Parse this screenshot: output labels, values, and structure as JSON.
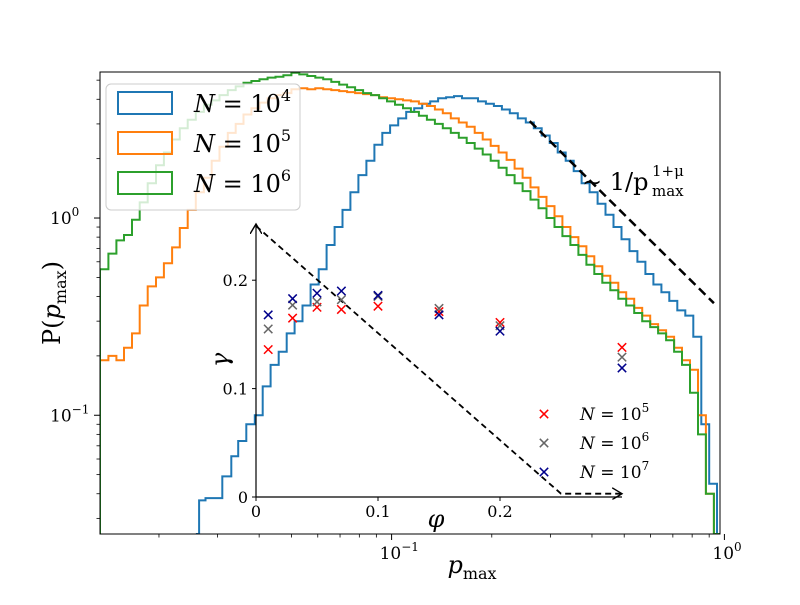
{
  "chart_data": [
    {
      "type": "step-histogram",
      "title": "",
      "xlabel": "p_max",
      "ylabel": "P(p_max)",
      "xscale": "log",
      "yscale": "log",
      "xlim": [
        0.0133,
        0.97
      ],
      "ylim": [
        0.025,
        5.5
      ],
      "xticks": [
        {
          "value": 0.1,
          "label": "10",
          "exp": "−1"
        },
        {
          "value": 1,
          "label": "10",
          "exp": "0"
        }
      ],
      "yticks": [
        {
          "value": 0.1,
          "label": "10",
          "exp": "−1"
        },
        {
          "value": 1,
          "label": "10",
          "exp": "0"
        }
      ],
      "legend_position": "top-left",
      "series": [
        {
          "name": "N = 10^4",
          "legend_base": "N = 10",
          "legend_exp": "4",
          "color": "#1f77b4",
          "points": [
            [
              0.026,
              0.025
            ],
            [
              0.0264,
              0.037
            ],
            [
              0.0276,
              0.038
            ],
            [
              0.0293,
              0.038
            ],
            [
              0.031,
              0.049
            ],
            [
              0.033,
              0.062
            ],
            [
              0.0346,
              0.074
            ],
            [
              0.0366,
              0.09
            ],
            [
              0.0388,
              0.1
            ],
            [
              0.041,
              0.14
            ],
            [
              0.0433,
              0.18
            ],
            [
              0.0458,
              0.21
            ],
            [
              0.0484,
              0.26
            ],
            [
              0.0511,
              0.3
            ],
            [
              0.054,
              0.36
            ],
            [
              0.0571,
              0.46
            ],
            [
              0.0604,
              0.55
            ],
            [
              0.0638,
              0.73
            ],
            [
              0.0674,
              0.9
            ],
            [
              0.0712,
              1.1
            ],
            [
              0.0752,
              1.35
            ],
            [
              0.0795,
              1.65
            ],
            [
              0.084,
              1.95
            ],
            [
              0.0888,
              2.35
            ],
            [
              0.0938,
              2.7
            ],
            [
              0.099,
              2.95
            ],
            [
              0.1047,
              3.2
            ],
            [
              0.1106,
              3.45
            ],
            [
              0.1169,
              3.6
            ],
            [
              0.1236,
              3.8
            ],
            [
              0.1306,
              3.9
            ],
            [
              0.138,
              4.05
            ],
            [
              0.1458,
              4.1
            ],
            [
              0.154,
              4.15
            ],
            [
              0.1628,
              4.05
            ],
            [
              0.172,
              4.05
            ],
            [
              0.1818,
              3.9
            ],
            [
              0.192,
              3.8
            ],
            [
              0.2029,
              3.7
            ],
            [
              0.2145,
              3.55
            ],
            [
              0.2266,
              3.4
            ],
            [
              0.2395,
              3.2
            ],
            [
              0.2531,
              3.05
            ],
            [
              0.2674,
              2.85
            ],
            [
              0.2826,
              2.62
            ],
            [
              0.2986,
              2.4
            ],
            [
              0.3156,
              2.15
            ],
            [
              0.3335,
              1.95
            ],
            [
              0.3524,
              1.73
            ],
            [
              0.3724,
              1.5
            ],
            [
              0.3935,
              1.35
            ],
            [
              0.4158,
              1.18
            ],
            [
              0.4394,
              1.04
            ],
            [
              0.4643,
              0.9
            ],
            [
              0.4906,
              0.78
            ],
            [
              0.5185,
              0.68
            ],
            [
              0.5479,
              0.6
            ],
            [
              0.579,
              0.52
            ],
            [
              0.6118,
              0.46
            ],
            [
              0.6465,
              0.42
            ],
            [
              0.6832,
              0.38
            ],
            [
              0.722,
              0.34
            ],
            [
              0.763,
              0.32
            ],
            [
              0.8062,
              0.25
            ],
            [
              0.852,
              0.09
            ],
            [
              0.9,
              0.045
            ],
            [
              0.95,
              0.025
            ]
          ]
        },
        {
          "name": "N = 10^5",
          "legend_base": "N = 10",
          "legend_exp": "5",
          "color": "#ff7f0e",
          "points": [
            [
              0.0133,
              0.19
            ],
            [
              0.0141,
              0.2
            ],
            [
              0.0149,
              0.19
            ],
            [
              0.0157,
              0.22
            ],
            [
              0.0166,
              0.26
            ],
            [
              0.0175,
              0.36
            ],
            [
              0.0185,
              0.45
            ],
            [
              0.0196,
              0.5
            ],
            [
              0.0207,
              0.59
            ],
            [
              0.0219,
              0.71
            ],
            [
              0.0231,
              0.89
            ],
            [
              0.0244,
              1.1
            ],
            [
              0.0258,
              1.35
            ],
            [
              0.0273,
              1.6
            ],
            [
              0.0288,
              1.95
            ],
            [
              0.0304,
              2.3
            ],
            [
              0.0322,
              2.7
            ],
            [
              0.034,
              3.0
            ],
            [
              0.0359,
              3.35
            ],
            [
              0.0379,
              3.6
            ],
            [
              0.0401,
              3.85
            ],
            [
              0.0424,
              4.05
            ],
            [
              0.0448,
              4.2
            ],
            [
              0.0473,
              4.3
            ],
            [
              0.05,
              4.5
            ],
            [
              0.0528,
              4.55
            ],
            [
              0.0558,
              4.5
            ],
            [
              0.059,
              4.55
            ],
            [
              0.0623,
              4.5
            ],
            [
              0.0659,
              4.45
            ],
            [
              0.0696,
              4.4
            ],
            [
              0.0735,
              4.35
            ],
            [
              0.0777,
              4.3
            ],
            [
              0.0821,
              4.25
            ],
            [
              0.0868,
              4.2
            ],
            [
              0.0917,
              4.1
            ],
            [
              0.0969,
              4.05
            ],
            [
              0.1024,
              4.0
            ],
            [
              0.1082,
              3.95
            ],
            [
              0.1143,
              3.9
            ],
            [
              0.1208,
              3.8
            ],
            [
              0.1277,
              3.7
            ],
            [
              0.1349,
              3.55
            ],
            [
              0.1425,
              3.4
            ],
            [
              0.1506,
              3.2
            ],
            [
              0.1592,
              3.05
            ],
            [
              0.1682,
              2.9
            ],
            [
              0.1777,
              2.7
            ],
            [
              0.1878,
              2.5
            ],
            [
              0.1985,
              2.32
            ],
            [
              0.2097,
              2.15
            ],
            [
              0.2216,
              1.97
            ],
            [
              0.2342,
              1.78
            ],
            [
              0.2475,
              1.6
            ],
            [
              0.2615,
              1.43
            ],
            [
              0.2763,
              1.28
            ],
            [
              0.292,
              1.15
            ],
            [
              0.3086,
              1.02
            ],
            [
              0.3261,
              0.9
            ],
            [
              0.3446,
              0.8
            ],
            [
              0.3641,
              0.72
            ],
            [
              0.3848,
              0.64
            ],
            [
              0.4066,
              0.57
            ],
            [
              0.4297,
              0.51
            ],
            [
              0.454,
              0.47
            ],
            [
              0.4798,
              0.42
            ],
            [
              0.507,
              0.39
            ],
            [
              0.5358,
              0.35
            ],
            [
              0.5662,
              0.32
            ],
            [
              0.5983,
              0.29
            ],
            [
              0.6322,
              0.27
            ],
            [
              0.6681,
              0.25
            ],
            [
              0.706,
              0.22
            ],
            [
              0.746,
              0.19
            ],
            [
              0.7883,
              0.17
            ],
            [
              0.833,
              0.1
            ],
            [
              0.88,
              0.04
            ],
            [
              0.93,
              0.025
            ]
          ]
        },
        {
          "name": "N = 10^6",
          "legend_base": "N = 10",
          "legend_exp": "6",
          "color": "#2ca02c",
          "points": [
            [
              0.0133,
              0.55
            ],
            [
              0.0141,
              0.66
            ],
            [
              0.0149,
              0.77
            ],
            [
              0.0157,
              0.82
            ],
            [
              0.0166,
              0.98
            ],
            [
              0.0175,
              1.2
            ],
            [
              0.0185,
              1.5
            ],
            [
              0.0196,
              1.85
            ],
            [
              0.0207,
              2.15
            ],
            [
              0.0219,
              2.5
            ],
            [
              0.0231,
              2.85
            ],
            [
              0.0244,
              3.15
            ],
            [
              0.0258,
              3.45
            ],
            [
              0.0273,
              3.75
            ],
            [
              0.0288,
              3.95
            ],
            [
              0.0304,
              4.2
            ],
            [
              0.0322,
              4.45
            ],
            [
              0.034,
              4.65
            ],
            [
              0.0359,
              4.85
            ],
            [
              0.0379,
              4.95
            ],
            [
              0.0401,
              5.05
            ],
            [
              0.0424,
              5.15
            ],
            [
              0.0448,
              5.2
            ],
            [
              0.0473,
              5.3
            ],
            [
              0.05,
              5.45
            ],
            [
              0.0528,
              5.35
            ],
            [
              0.0558,
              5.25
            ],
            [
              0.059,
              5.15
            ],
            [
              0.0623,
              5.05
            ],
            [
              0.0659,
              4.9
            ],
            [
              0.0696,
              4.75
            ],
            [
              0.0735,
              4.6
            ],
            [
              0.0777,
              4.45
            ],
            [
              0.0821,
              4.3
            ],
            [
              0.0868,
              4.2
            ],
            [
              0.0917,
              4.05
            ],
            [
              0.0969,
              3.9
            ],
            [
              0.1024,
              3.75
            ],
            [
              0.1082,
              3.6
            ],
            [
              0.1143,
              3.45
            ],
            [
              0.1208,
              3.3
            ],
            [
              0.1277,
              3.15
            ],
            [
              0.1349,
              3.0
            ],
            [
              0.1425,
              2.85
            ],
            [
              0.1506,
              2.7
            ],
            [
              0.1592,
              2.55
            ],
            [
              0.1682,
              2.4
            ],
            [
              0.1777,
              2.25
            ],
            [
              0.1878,
              2.1
            ],
            [
              0.1985,
              1.95
            ],
            [
              0.2097,
              1.8
            ],
            [
              0.2216,
              1.65
            ],
            [
              0.2342,
              1.5
            ],
            [
              0.2475,
              1.37
            ],
            [
              0.2615,
              1.24
            ],
            [
              0.2763,
              1.12
            ],
            [
              0.292,
              1.0
            ],
            [
              0.3086,
              0.9
            ],
            [
              0.3261,
              0.81
            ],
            [
              0.3446,
              0.73
            ],
            [
              0.3641,
              0.65
            ],
            [
              0.3848,
              0.58
            ],
            [
              0.4066,
              0.52
            ],
            [
              0.4297,
              0.47
            ],
            [
              0.454,
              0.43
            ],
            [
              0.4798,
              0.39
            ],
            [
              0.507,
              0.36
            ],
            [
              0.5358,
              0.33
            ],
            [
              0.5662,
              0.3
            ],
            [
              0.5983,
              0.28
            ],
            [
              0.6322,
              0.26
            ],
            [
              0.6681,
              0.24
            ],
            [
              0.706,
              0.21
            ],
            [
              0.746,
              0.18
            ],
            [
              0.7883,
              0.13
            ],
            [
              0.833,
              0.08
            ],
            [
              0.88,
              0.04
            ],
            [
              0.93,
              0.025
            ]
          ]
        }
      ],
      "annotations": [
        {
          "kind": "dashed-line",
          "from": [
            0.26,
            3.1
          ],
          "to": [
            0.93,
            0.37
          ],
          "color": "#000000"
        },
        {
          "kind": "text",
          "base": "∼ 1/p",
          "sub": "max",
          "sup": "1+μ",
          "anchor_data": [
            0.34,
            1.9
          ]
        }
      ]
    },
    {
      "type": "scatter",
      "title": "",
      "xlabel": "φ",
      "ylabel": "γ",
      "xlim": [
        0,
        0.3
      ],
      "ylim": [
        0,
        0.25
      ],
      "xticks": [
        {
          "value": 0,
          "label": "0"
        },
        {
          "value": 0.1,
          "label": "0.1"
        },
        {
          "value": 0.2,
          "label": "0.2"
        }
      ],
      "yticks": [
        {
          "value": 0,
          "label": "0"
        },
        {
          "value": 0.1,
          "label": "0.1"
        },
        {
          "value": 0.2,
          "label": "0.2"
        }
      ],
      "marker": "x",
      "legend_position": "bottom-right",
      "series": [
        {
          "name": "N = 10^5",
          "legend_base": "N = 10",
          "legend_exp": "5",
          "color": "#ff0000",
          "x": [
            0.01,
            0.03,
            0.05,
            0.07,
            0.1,
            0.15,
            0.2,
            0.3
          ],
          "y": [
            0.136,
            0.165,
            0.175,
            0.173,
            0.176,
            0.171,
            0.161,
            0.138
          ]
        },
        {
          "name": "N = 10^6",
          "legend_base": "N = 10",
          "legend_exp": "6",
          "color": "#666666",
          "x": [
            0.01,
            0.03,
            0.05,
            0.07,
            0.1,
            0.15,
            0.2,
            0.3
          ],
          "y": [
            0.155,
            0.177,
            0.18,
            0.182,
            0.185,
            0.174,
            0.158,
            0.129
          ]
        },
        {
          "name": "N = 10^7",
          "legend_base": "N = 10",
          "legend_exp": "7",
          "color": "#00008b",
          "x": [
            0.01,
            0.03,
            0.05,
            0.07,
            0.1,
            0.15,
            0.2,
            0.3
          ],
          "y": [
            0.168,
            0.183,
            0.188,
            0.19,
            0.186,
            0.168,
            0.153,
            0.119
          ]
        }
      ],
      "annotations": [
        {
          "kind": "dashed-arrow-path",
          "points": [
            [
              0,
              0.25
            ],
            [
              0.25,
              0.003
            ],
            [
              0.3,
              0.003
            ]
          ],
          "color": "#000000"
        }
      ]
    }
  ]
}
